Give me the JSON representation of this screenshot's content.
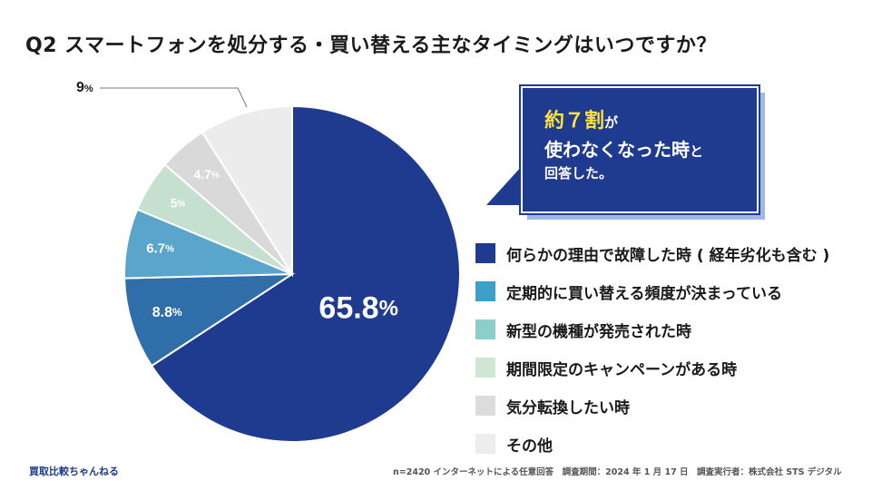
{
  "title": "Q2 スマートフォンを処分する・買い替える主なタイミングはいつですか？",
  "chart_data": {
    "type": "pie",
    "title": "Q2 スマートフォンを処分する・買い替える主なタイミングはいつですか？",
    "slices": [
      {
        "name": "何らかの理由で故障した時（経年劣化も含む）",
        "value": 65.8,
        "label": "65.8",
        "color": "#1f3b8f"
      },
      {
        "name": "定期的に買い替える頻度が決まっている",
        "value": 8.8,
        "label": "8.8",
        "color": "#2f6ea8"
      },
      {
        "name": "新型の機種が発売された時",
        "value": 6.7,
        "label": "6.7",
        "color": "#5aa5cb"
      },
      {
        "name": "期間限定のキャンペーンがある時",
        "value": 5,
        "label": "5",
        "color": "#c5e0cf"
      },
      {
        "name": "気分転換したい時",
        "value": 4.7,
        "label": "4.7",
        "color": "#d9d9d9"
      },
      {
        "name": "その他",
        "value": 9,
        "label": "9",
        "color": "#ececec"
      }
    ],
    "unit": "%"
  },
  "callout": {
    "highlight": "約７割",
    "line1_suffix": "が",
    "line2_main": "使わなくなった時",
    "line2_suffix": "と",
    "line3": "回答した。"
  },
  "legend": [
    {
      "label": "何らかの理由で故障した時 ( 経年劣化も含む )",
      "color": "#1f3b8f"
    },
    {
      "label": "定期的に買い替える頻度が決まっている",
      "color": "#3ca0c8"
    },
    {
      "label": "新型の機種が発売された時",
      "color": "#8ccfca"
    },
    {
      "label": "期間限定のキャンペーンがある時",
      "color": "#cfe6d2"
    },
    {
      "label": "気分転換したい時",
      "color": "#dcdcdc"
    },
    {
      "label": "その他",
      "color": "#ededed"
    }
  ],
  "footer": {
    "brand": "買取比較ちゃんねる",
    "note": "n=2420 インターネットによる任意回答　調査期間：2024 年 1 月 17 日　調査実行者：株式会社 STS デジタル"
  }
}
